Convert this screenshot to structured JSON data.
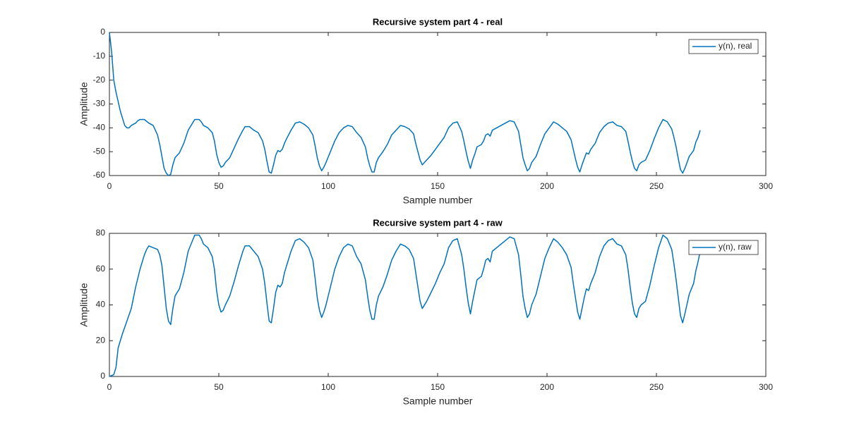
{
  "chart_data": [
    {
      "type": "line",
      "title": "Recursive system part 4 - real",
      "xlabel": "Sample number",
      "ylabel": "Amplitude",
      "xlim": [
        0,
        300
      ],
      "xticks": [
        0,
        50,
        100,
        150,
        200,
        250,
        300
      ],
      "ylim": [
        -60,
        0
      ],
      "yticks": [
        -60,
        -50,
        -40,
        -30,
        -20,
        -10,
        0
      ],
      "legend": "northeast",
      "grid": false,
      "x": [
        0,
        1,
        2,
        3,
        4,
        5,
        6,
        7,
        8,
        9,
        10,
        12,
        13,
        14,
        16,
        18,
        20,
        22,
        23,
        24,
        25,
        26,
        27,
        28,
        29,
        30,
        32,
        34,
        36,
        38,
        39,
        41,
        42,
        43,
        45,
        47,
        48,
        49,
        50,
        51,
        52,
        53,
        55,
        57,
        59,
        61,
        62,
        64,
        66,
        68,
        70,
        71,
        72,
        73,
        74,
        75,
        76,
        77,
        78,
        79,
        80,
        81,
        83,
        85,
        87,
        89,
        91,
        93,
        94,
        95,
        96,
        97,
        98,
        99,
        101,
        103,
        105,
        107,
        109,
        111,
        113,
        115,
        117,
        118,
        119,
        120,
        121,
        122,
        123,
        125,
        127,
        129,
        131,
        133,
        135,
        137,
        139,
        140,
        141,
        142,
        143,
        145,
        147,
        149,
        151,
        153,
        155,
        157,
        159,
        161,
        162,
        163,
        164,
        165,
        166,
        167,
        168,
        170,
        171,
        172,
        173,
        174,
        175,
        177,
        179,
        181,
        183,
        185,
        187,
        188,
        189,
        190,
        191,
        192,
        193,
        195,
        197,
        199,
        201,
        203,
        205,
        207,
        209,
        211,
        212,
        213,
        214,
        215,
        216,
        217,
        218,
        219,
        220,
        222,
        224,
        226,
        228,
        230,
        232,
        234,
        236,
        237,
        238,
        239,
        240,
        241,
        242,
        243,
        245,
        247,
        249,
        251,
        253,
        255,
        257,
        258,
        259,
        260,
        261,
        262,
        263,
        265,
        267,
        268,
        269,
        270
      ],
      "series": [
        {
          "name": "y(n), real",
          "color": "#0072bd",
          "values": [
            0,
            -8,
            -20,
            -25,
            -29,
            -33,
            -36,
            -39,
            -40,
            -40,
            -39,
            -38,
            -37,
            -36.5,
            -36.5,
            -38,
            -39,
            -43,
            -47,
            -52,
            -57,
            -59,
            -60,
            -59.5,
            -55.5,
            -52.5,
            -50.5,
            -46.5,
            -41,
            -38,
            -36.5,
            -36.5,
            -37.5,
            -39,
            -40,
            -42,
            -45.5,
            -51,
            -54.5,
            -56.5,
            -56,
            -54.5,
            -52.5,
            -48.5,
            -44.5,
            -41,
            -39.5,
            -39.5,
            -41,
            -42,
            -45.5,
            -49,
            -54,
            -58.5,
            -59,
            -55.5,
            -51.5,
            -49.5,
            -50,
            -49,
            -46.5,
            -44.5,
            -41,
            -38,
            -37.5,
            -38.5,
            -40,
            -43,
            -47.5,
            -52.5,
            -56,
            -58,
            -56.5,
            -54.5,
            -50,
            -45.5,
            -42,
            -40,
            -39,
            -39.5,
            -42,
            -44,
            -48,
            -52.5,
            -56,
            -58.5,
            -58.5,
            -54.5,
            -52.5,
            -50,
            -47,
            -43,
            -41,
            -39,
            -39.5,
            -40.5,
            -42.5,
            -46.5,
            -50,
            -53.5,
            -55.5,
            -53.5,
            -51.5,
            -49,
            -46.5,
            -44,
            -40,
            -38,
            -37.5,
            -41.5,
            -45.5,
            -50,
            -54,
            -57,
            -53.5,
            -51,
            -48,
            -47,
            -45.5,
            -43,
            -42.5,
            -43.5,
            -41,
            -40,
            -39,
            -38,
            -37,
            -37.5,
            -41.5,
            -47,
            -52.5,
            -55.5,
            -58,
            -57,
            -54.5,
            -52,
            -47,
            -42.5,
            -40,
            -37.5,
            -38.5,
            -40,
            -41.5,
            -45,
            -49,
            -53,
            -56.5,
            -58.5,
            -55.5,
            -53,
            -50.5,
            -51,
            -49,
            -46.5,
            -42,
            -39.5,
            -38,
            -37.5,
            -39,
            -39.5,
            -41.5,
            -45.5,
            -50,
            -54,
            -57,
            -58,
            -55.5,
            -54.5,
            -53.5,
            -49.5,
            -44.5,
            -40,
            -36.5,
            -37.5,
            -40.5,
            -44,
            -48,
            -53,
            -57.5,
            -59,
            -57,
            -52,
            -49.5,
            -46,
            -44,
            -41
          ]
        }
      ]
    },
    {
      "type": "line",
      "title": "Recursive system part 4 - raw",
      "xlabel": "Sample number",
      "ylabel": "Amplitude",
      "xlim": [
        0,
        300
      ],
      "xticks": [
        0,
        50,
        100,
        150,
        200,
        250,
        300
      ],
      "ylim": [
        0,
        80
      ],
      "yticks": [
        0,
        20,
        40,
        60,
        80
      ],
      "legend": "northeast",
      "grid": false,
      "x": [
        0,
        2,
        3,
        4,
        6,
        8,
        10,
        12,
        14,
        16,
        17,
        18,
        20,
        22,
        23,
        24,
        25,
        26,
        27,
        28,
        29,
        30,
        32,
        34,
        36,
        38,
        39,
        41,
        42,
        43,
        45,
        47,
        48,
        49,
        50,
        51,
        52,
        53,
        55,
        57,
        59,
        61,
        62,
        64,
        66,
        68,
        70,
        71,
        72,
        73,
        74,
        75,
        76,
        77,
        78,
        79,
        80,
        81,
        83,
        85,
        87,
        89,
        91,
        93,
        94,
        95,
        96,
        97,
        98,
        99,
        101,
        103,
        105,
        107,
        109,
        111,
        113,
        115,
        117,
        118,
        119,
        120,
        121,
        122,
        123,
        125,
        127,
        129,
        131,
        133,
        135,
        137,
        139,
        140,
        141,
        142,
        143,
        145,
        147,
        149,
        151,
        153,
        155,
        157,
        159,
        161,
        162,
        163,
        164,
        165,
        166,
        167,
        168,
        170,
        171,
        172,
        173,
        174,
        175,
        177,
        179,
        181,
        183,
        185,
        187,
        188,
        189,
        190,
        191,
        192,
        193,
        195,
        197,
        199,
        201,
        203,
        205,
        207,
        209,
        211,
        212,
        213,
        214,
        215,
        216,
        217,
        218,
        219,
        220,
        222,
        224,
        226,
        228,
        230,
        232,
        234,
        236,
        237,
        238,
        239,
        240,
        241,
        242,
        243,
        245,
        247,
        249,
        251,
        253,
        255,
        257,
        258,
        259,
        260,
        261,
        262,
        263,
        265,
        267,
        268,
        269,
        270
      ],
      "series": [
        {
          "name": "y(n), raw",
          "color": "#0072bd",
          "values": [
            0,
            1,
            5,
            16,
            24,
            31,
            38,
            50,
            60,
            68,
            71,
            73,
            72,
            71,
            68,
            62,
            50,
            38,
            31,
            29,
            38,
            45,
            49,
            58,
            70,
            76,
            79,
            79,
            77,
            74,
            72,
            67,
            60,
            48,
            40,
            36,
            37,
            40,
            45,
            53,
            62,
            70,
            73,
            73,
            70,
            67,
            60,
            52,
            41,
            31,
            30,
            38,
            47,
            51,
            50,
            52,
            58,
            62,
            70,
            76,
            77,
            75,
            72,
            65,
            55,
            44,
            37,
            33,
            36,
            40,
            50,
            60,
            67,
            72,
            74,
            73,
            67,
            63,
            54,
            45,
            37,
            32,
            32,
            40,
            45,
            50,
            57,
            65,
            70,
            74,
            73,
            71,
            66,
            58,
            50,
            42,
            38,
            42,
            47,
            52,
            58,
            63,
            72,
            76,
            77,
            68,
            60,
            50,
            41,
            35,
            42,
            48,
            54,
            56,
            60,
            65,
            66,
            64,
            70,
            72,
            74,
            76,
            78,
            77,
            68,
            57,
            45,
            38,
            33,
            35,
            40,
            46,
            56,
            66,
            72,
            77,
            75,
            72,
            68,
            61,
            52,
            44,
            36,
            32,
            38,
            44,
            49,
            48,
            52,
            58,
            67,
            73,
            76,
            77,
            74,
            73,
            68,
            60,
            50,
            41,
            35,
            33,
            38,
            40,
            42,
            51,
            62,
            72,
            79,
            77,
            71,
            63,
            54,
            44,
            34,
            30,
            35,
            46,
            52,
            59,
            64,
            70
          ]
        }
      ]
    }
  ]
}
